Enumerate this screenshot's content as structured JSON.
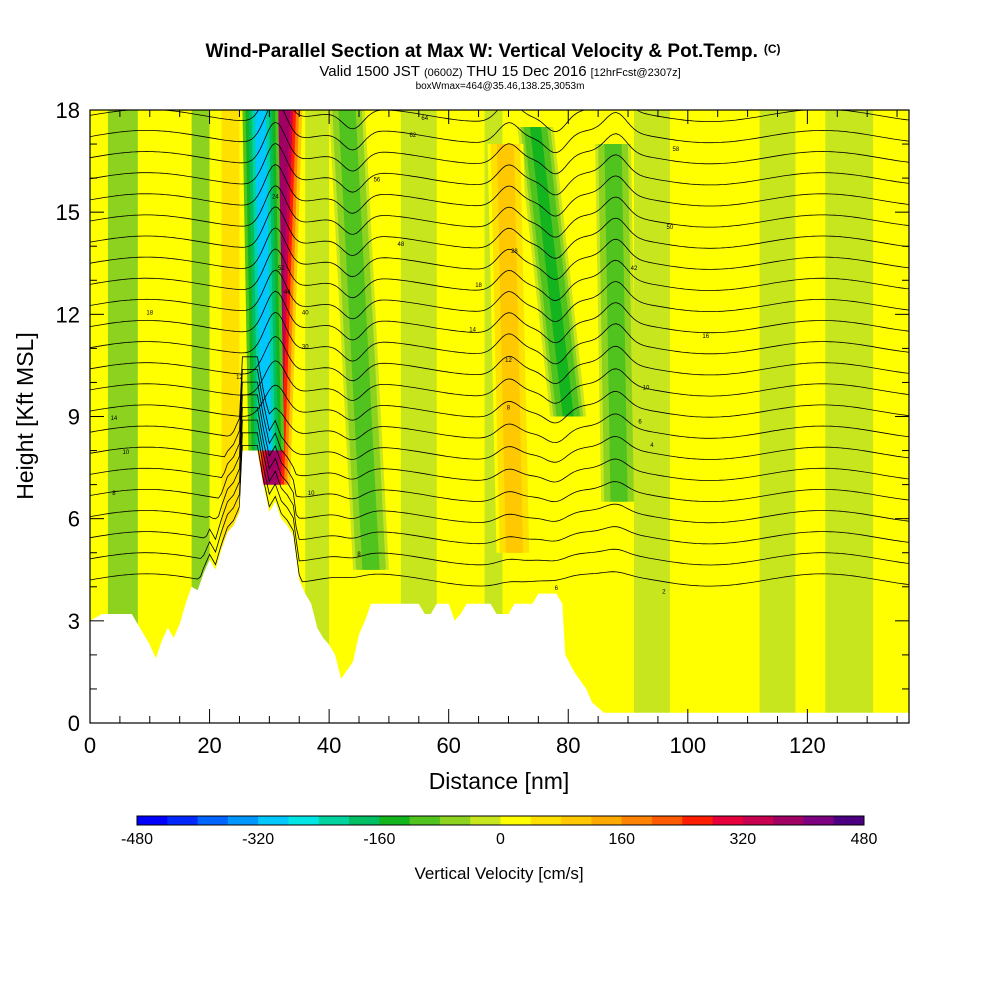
{
  "chart_data": {
    "type": "heatmap",
    "title": "Wind-Parallel Section at Max W: Vertical Velocity & Pot.Temp.",
    "title_mark": "(C)",
    "subtitle_parts": [
      "Valid 1500 JST",
      "(0600Z)",
      "THU 15 Dec 2016",
      "[12hrFcst@2307z]"
    ],
    "subtitle2": "boxWmax=464@35.46,138.25,3053m",
    "xlabel": "Distance [nm]",
    "ylabel": "Height [Kft MSL]",
    "xlim": [
      0,
      137
    ],
    "ylim": [
      0,
      18
    ],
    "x_ticks": [
      0,
      20,
      40,
      60,
      80,
      100,
      120
    ],
    "y_ticks": [
      0,
      3,
      6,
      9,
      12,
      15,
      18
    ],
    "colorbar": {
      "label": "Vertical Velocity [cm/s]",
      "min": -480,
      "max": 480,
      "step": 40,
      "tick_labels": [
        -480,
        -320,
        -160,
        0,
        160,
        320,
        480
      ],
      "colors": [
        "#0000ff",
        "#0028ff",
        "#0064ff",
        "#0096ff",
        "#00c8ff",
        "#00e6e6",
        "#00d2a0",
        "#00be64",
        "#14b41e",
        "#50c31e",
        "#8cd21e",
        "#c8e61e",
        "#ffff00",
        "#ffe100",
        "#ffc800",
        "#ffaa00",
        "#ff8200",
        "#ff5a00",
        "#ff1e00",
        "#e6003c",
        "#c80050",
        "#a00064",
        "#7d0082",
        "#4b0082"
      ]
    },
    "terrain_kft": [
      [
        0,
        3.0
      ],
      [
        2,
        3.2
      ],
      [
        7,
        3.2
      ],
      [
        8,
        2.9
      ],
      [
        10,
        2.3
      ],
      [
        11,
        1.9
      ],
      [
        12,
        2.4
      ],
      [
        13,
        2.8
      ],
      [
        14,
        2.5
      ],
      [
        15,
        2.9
      ],
      [
        16,
        3.5
      ],
      [
        17,
        4.0
      ],
      [
        18,
        3.9
      ],
      [
        19,
        4.4
      ],
      [
        20,
        4.8
      ],
      [
        21,
        4.5
      ],
      [
        22,
        5.1
      ],
      [
        23,
        5.6
      ],
      [
        24,
        5.8
      ],
      [
        25,
        6.2
      ],
      [
        25.5,
        8.0
      ],
      [
        28,
        8.0
      ],
      [
        29,
        7.0
      ],
      [
        30,
        6.2
      ],
      [
        31,
        6.5
      ],
      [
        32,
        6.0
      ],
      [
        33,
        5.8
      ],
      [
        34,
        5.5
      ],
      [
        35,
        4.2
      ],
      [
        36,
        3.8
      ],
      [
        37,
        3.5
      ],
      [
        38,
        2.8
      ],
      [
        39,
        2.5
      ],
      [
        40,
        2.3
      ],
      [
        41,
        2.0
      ],
      [
        42,
        1.3
      ],
      [
        44,
        1.8
      ],
      [
        45,
        2.6
      ],
      [
        46,
        3.0
      ],
      [
        47,
        3.5
      ],
      [
        50,
        3.5
      ],
      [
        55,
        3.5
      ],
      [
        56,
        3.2
      ],
      [
        57,
        3.2
      ],
      [
        58,
        3.5
      ],
      [
        60,
        3.5
      ],
      [
        61,
        3.0
      ],
      [
        62,
        3.2
      ],
      [
        63,
        3.5
      ],
      [
        67,
        3.5
      ],
      [
        68,
        3.2
      ],
      [
        70,
        3.2
      ],
      [
        71,
        3.5
      ],
      [
        74,
        3.5
      ],
      [
        75,
        3.8
      ],
      [
        78,
        3.8
      ],
      [
        79,
        3.5
      ],
      [
        79.5,
        2.0
      ],
      [
        81,
        1.5
      ],
      [
        83,
        1.0
      ],
      [
        84,
        0.6
      ],
      [
        86,
        0.3
      ],
      [
        137,
        0.3
      ]
    ],
    "velocity_features": [
      {
        "name": "main-updraft",
        "x_bottom": 30.5,
        "x_top": 32.5,
        "y_bottom": 7.0,
        "y_top": 18.0,
        "w_cms": 464
      },
      {
        "name": "main-downdraft",
        "x_bottom": 29.5,
        "x_top": 28.5,
        "y_bottom": 8.0,
        "y_top": 18.0,
        "w_cms": -340
      },
      {
        "name": "downdraft-44",
        "x_bottom": 47.0,
        "x_top": 43.0,
        "y_bottom": 4.5,
        "y_top": 18.0,
        "w_cms": -140
      },
      {
        "name": "downdraft-78",
        "x_bottom": 80.0,
        "x_top": 74.5,
        "y_bottom": 9.0,
        "y_top": 17.5,
        "w_cms": -150
      },
      {
        "name": "downdraft-88",
        "x_bottom": 88.5,
        "x_top": 87.5,
        "y_bottom": 6.5,
        "y_top": 17.0,
        "w_cms": -120
      },
      {
        "name": "updraft-70",
        "x_bottom": 71.0,
        "x_top": 69.5,
        "y_bottom": 5.0,
        "y_top": 17.0,
        "w_cms": 120
      }
    ],
    "contour_labels": [
      {
        "x": 56,
        "y": 17.7,
        "text": "64"
      },
      {
        "x": 54,
        "y": 17.2,
        "text": "62"
      },
      {
        "x": 98,
        "y": 16.8,
        "text": "58"
      },
      {
        "x": 48,
        "y": 15.9,
        "text": "56"
      },
      {
        "x": 97,
        "y": 14.5,
        "text": "50"
      },
      {
        "x": 52,
        "y": 14.0,
        "text": "48"
      },
      {
        "x": 91,
        "y": 13.3,
        "text": "42"
      },
      {
        "x": 71,
        "y": 13.8,
        "text": "28"
      },
      {
        "x": 65,
        "y": 12.8,
        "text": "18"
      },
      {
        "x": 103,
        "y": 11.3,
        "text": "16"
      },
      {
        "x": 64,
        "y": 11.5,
        "text": "14"
      },
      {
        "x": 70,
        "y": 10.6,
        "text": "12"
      },
      {
        "x": 93,
        "y": 9.8,
        "text": "10"
      },
      {
        "x": 70,
        "y": 9.2,
        "text": "8"
      },
      {
        "x": 92,
        "y": 8.8,
        "text": "6"
      },
      {
        "x": 94,
        "y": 8.1,
        "text": "4"
      },
      {
        "x": 10,
        "y": 12.0,
        "text": "18"
      },
      {
        "x": 4,
        "y": 8.9,
        "text": "14"
      },
      {
        "x": 6,
        "y": 7.9,
        "text": "10"
      },
      {
        "x": 4,
        "y": 6.7,
        "text": "8"
      },
      {
        "x": 25,
        "y": 10.1,
        "text": "12"
      },
      {
        "x": 36,
        "y": 12.0,
        "text": "40"
      },
      {
        "x": 36,
        "y": 11.0,
        "text": "30"
      },
      {
        "x": 37,
        "y": 6.7,
        "text": "10"
      },
      {
        "x": 45,
        "y": 4.9,
        "text": "8"
      },
      {
        "x": 78,
        "y": 3.9,
        "text": "6"
      },
      {
        "x": 96,
        "y": 3.8,
        "text": "2"
      },
      {
        "x": 31,
        "y": 15.4,
        "text": "24"
      },
      {
        "x": 32,
        "y": 13.3,
        "text": "52"
      },
      {
        "x": 33,
        "y": 12.6,
        "text": "46"
      }
    ]
  }
}
